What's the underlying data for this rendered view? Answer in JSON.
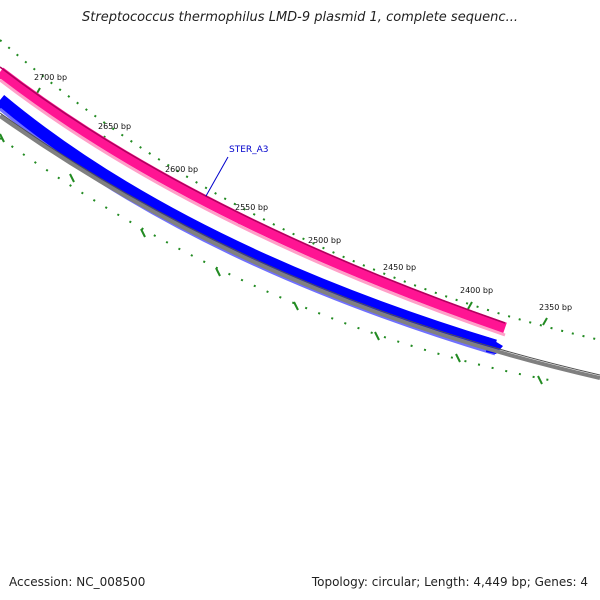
{
  "title": "Streptococcus thermophilus LMD-9 plasmid 1, complete sequenc...",
  "footer": {
    "accession": "Accession: NC_008500",
    "stats": "Topology: circular; Length: 4,449 bp; Genes: 4"
  },
  "ruler": {
    "ticks": [
      {
        "bp": 2700,
        "label": "2700 bp"
      },
      {
        "bp": 2650,
        "label": "2650 bp"
      },
      {
        "bp": 2600,
        "label": "2600 bp"
      },
      {
        "bp": 2550,
        "label": "2550 bp"
      },
      {
        "bp": 2500,
        "label": "2500 bp"
      },
      {
        "bp": 2450,
        "label": "2450 bp"
      },
      {
        "bp": 2400,
        "label": "2400 bp"
      },
      {
        "bp": 2350,
        "label": "2350 bp"
      }
    ],
    "tick_color": "#228b22"
  },
  "features": {
    "gene_label": "STER_A3",
    "colors": {
      "cds": "#ff1493",
      "gene": "#0000ff",
      "backbone": "#808080",
      "label": "#0000cc"
    }
  }
}
